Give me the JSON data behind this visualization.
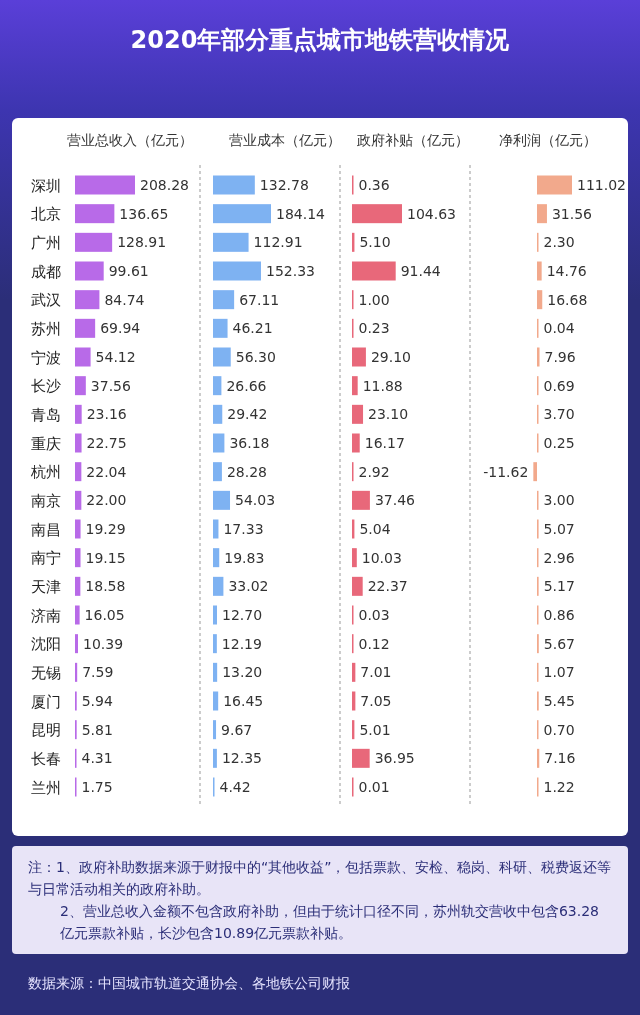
{
  "chart_data": [
    {
      "type": "other",
      "title": "2020年部分重点城市地铁营收情况",
      "annotations": [
        "注：1、政府补助数据来源于财报中的“其他收益”，包括票款、安检、稳岗、科研、税费返还等与日常活动相关的政府补助。",
        "2、营业总收入金额不包含政府补助，但由于统计口径不同，苏州轨交营收中包含63.28亿元票款补贴，长沙包含10.89亿元票款补贴。",
        "数据来源：中国城市轨道交通协会、各地铁公司财报"
      ]
    },
    {
      "type": "bar",
      "orientation": "horizontal",
      "title": "营业总收入（亿元）",
      "tick_labels": "y",
      "data_labels": true,
      "color": "#b86ae8",
      "categories": [
        "深圳",
        "北京",
        "广州",
        "成都",
        "武汉",
        "苏州",
        "宁波",
        "长沙",
        "青岛",
        "重庆",
        "杭州",
        "南京",
        "南昌",
        "南宁",
        "天津",
        "济南",
        "沈阳",
        "无锡",
        "厦门",
        "昆明",
        "长春",
        "兰州"
      ],
      "values": [
        208.28,
        136.65,
        128.91,
        99.61,
        84.74,
        69.94,
        54.12,
        37.56,
        23.16,
        22.75,
        22.04,
        22.0,
        19.29,
        19.15,
        18.58,
        16.05,
        10.39,
        7.59,
        5.94,
        5.81,
        4.31,
        1.75
      ],
      "value_labels": [
        "208.28",
        "136.65",
        "128.91",
        "99.61",
        "84.74",
        "69.94",
        "54.12",
        "37.56",
        "23.16",
        "22.75",
        "22.04",
        "22.00",
        "19.29",
        "19.15",
        "18.58",
        "16.05",
        "10.39",
        "7.59",
        "5.94",
        "5.81",
        "4.31",
        "1.75"
      ]
    },
    {
      "type": "bar",
      "orientation": "horizontal",
      "title": "营业成本（亿元）",
      "tick_labels": false,
      "data_labels": true,
      "color": "#7eb2f2",
      "categories": [
        "深圳",
        "北京",
        "广州",
        "成都",
        "武汉",
        "苏州",
        "宁波",
        "长沙",
        "青岛",
        "重庆",
        "杭州",
        "南京",
        "南昌",
        "南宁",
        "天津",
        "济南",
        "沈阳",
        "无锡",
        "厦门",
        "昆明",
        "长春",
        "兰州"
      ],
      "values": [
        132.78,
        184.14,
        112.91,
        152.33,
        67.11,
        46.21,
        56.3,
        26.66,
        29.42,
        36.18,
        28.28,
        54.03,
        17.33,
        19.83,
        33.02,
        12.7,
        12.19,
        13.2,
        16.45,
        9.67,
        12.35,
        4.42
      ],
      "value_labels": [
        "132.78",
        "184.14",
        "112.91",
        "152.33",
        "67.11",
        "46.21",
        "56.30",
        "26.66",
        "29.42",
        "36.18",
        "28.28",
        "54.03",
        "17.33",
        "19.83",
        "33.02",
        "12.70",
        "12.19",
        "13.20",
        "16.45",
        "9.67",
        "12.35",
        "4.42"
      ]
    },
    {
      "type": "bar",
      "orientation": "horizontal",
      "title": "政府补贴（亿元）",
      "tick_labels": false,
      "data_labels": true,
      "color": "#e8687a",
      "categories": [
        "深圳",
        "北京",
        "广州",
        "成都",
        "武汉",
        "苏州",
        "宁波",
        "长沙",
        "青岛",
        "重庆",
        "杭州",
        "南京",
        "南昌",
        "南宁",
        "天津",
        "济南",
        "沈阳",
        "无锡",
        "厦门",
        "昆明",
        "长春",
        "兰州"
      ],
      "values": [
        0.36,
        104.63,
        5.1,
        91.44,
        1.0,
        0.23,
        29.1,
        11.88,
        23.1,
        16.17,
        2.92,
        37.46,
        5.04,
        10.03,
        22.37,
        0.03,
        0.12,
        7.01,
        7.05,
        5.01,
        36.95,
        0.01
      ],
      "value_labels": [
        "0.36",
        "104.63",
        "5.10",
        "91.44",
        "1.00",
        "0.23",
        "29.10",
        "11.88",
        "23.10",
        "16.17",
        "2.92",
        "37.46",
        "5.04",
        "10.03",
        "22.37",
        "0.03",
        "0.12",
        "7.01",
        "7.05",
        "5.01",
        "36.95",
        "0.01"
      ]
    },
    {
      "type": "bar",
      "orientation": "horizontal",
      "title": "净利润（亿元）",
      "tick_labels": false,
      "data_labels": true,
      "color": "#f2a98c",
      "categories": [
        "深圳",
        "北京",
        "广州",
        "成都",
        "武汉",
        "苏州",
        "宁波",
        "长沙",
        "青岛",
        "重庆",
        "杭州",
        "南京",
        "南昌",
        "南宁",
        "天津",
        "济南",
        "沈阳",
        "无锡",
        "厦门",
        "昆明",
        "长春",
        "兰州"
      ],
      "values": [
        111.02,
        31.56,
        2.3,
        14.76,
        16.68,
        0.04,
        7.96,
        0.69,
        3.7,
        0.25,
        -11.62,
        3.0,
        5.07,
        2.96,
        5.17,
        0.86,
        5.67,
        1.07,
        5.45,
        0.7,
        7.16,
        1.22
      ],
      "value_labels": [
        "111.02",
        "31.56",
        "2.30",
        "14.76",
        "16.68",
        "0.04",
        "7.96",
        "0.69",
        "3.70",
        "0.25",
        "-11.62",
        "3.00",
        "5.07",
        "2.96",
        "5.17",
        "0.86",
        "5.67",
        "1.07",
        "5.45",
        "0.70",
        "7.16",
        "1.22"
      ]
    }
  ]
}
